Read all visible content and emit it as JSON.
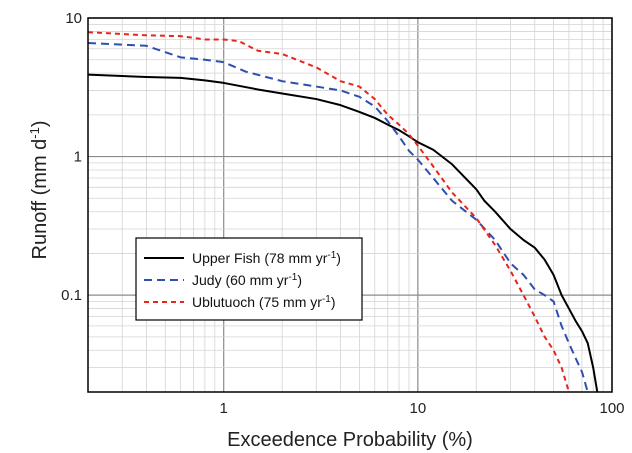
{
  "chart_data": {
    "type": "line",
    "xlabel": "Exceedence Probability (%)",
    "ylabel": {
      "main": "Runoff (mm d",
      "sup": "-1",
      "end": ")"
    },
    "xscale": "log",
    "yscale": "log",
    "xlim": [
      0.2,
      100
    ],
    "ylim": [
      0.02,
      10
    ],
    "xticks": [
      {
        "value": 1,
        "label": "1"
      },
      {
        "value": 10,
        "label": "10"
      },
      {
        "value": 100,
        "label": "100"
      }
    ],
    "yticks": [
      {
        "value": 0.1,
        "label": "0.1"
      },
      {
        "value": 1,
        "label": "1"
      },
      {
        "value": 10,
        "label": "10"
      }
    ],
    "grid": true,
    "legend_position": "lower-left",
    "series": [
      {
        "key": "upper-fish",
        "name": {
          "main": "Upper Fish (78 mm yr",
          "sup": "-1",
          "end": ")"
        },
        "color": "#000000",
        "dash": "solid",
        "points": [
          [
            0.2,
            3.9
          ],
          [
            0.4,
            3.75
          ],
          [
            0.6,
            3.7
          ],
          [
            0.8,
            3.55
          ],
          [
            1.0,
            3.4
          ],
          [
            1.5,
            3.05
          ],
          [
            2.0,
            2.85
          ],
          [
            3.0,
            2.6
          ],
          [
            4.0,
            2.35
          ],
          [
            5.0,
            2.1
          ],
          [
            6.0,
            1.9
          ],
          [
            7.0,
            1.7
          ],
          [
            8.0,
            1.55
          ],
          [
            9.0,
            1.4
          ],
          [
            10.0,
            1.27
          ],
          [
            12.0,
            1.12
          ],
          [
            15.0,
            0.88
          ],
          [
            20.0,
            0.58
          ],
          [
            22.0,
            0.48
          ],
          [
            25.0,
            0.4
          ],
          [
            30.0,
            0.3
          ],
          [
            35.0,
            0.25
          ],
          [
            40.0,
            0.22
          ],
          [
            45.0,
            0.18
          ],
          [
            50.0,
            0.14
          ],
          [
            55.0,
            0.1
          ],
          [
            60.0,
            0.08
          ],
          [
            65.0,
            0.065
          ],
          [
            70.0,
            0.055
          ],
          [
            75.0,
            0.045
          ],
          [
            80.0,
            0.03
          ],
          [
            84.0,
            0.02
          ]
        ]
      },
      {
        "key": "judy",
        "name": {
          "main": "Judy (60 mm yr",
          "sup": "-1",
          "end": ")"
        },
        "color": "#2f4fb0",
        "dash": "dashed",
        "points": [
          [
            0.2,
            6.6
          ],
          [
            0.4,
            6.3
          ],
          [
            0.6,
            5.2
          ],
          [
            0.8,
            5.0
          ],
          [
            1.0,
            4.8
          ],
          [
            1.3,
            4.1
          ],
          [
            2.0,
            3.5
          ],
          [
            3.0,
            3.2
          ],
          [
            4.0,
            3.0
          ],
          [
            5.0,
            2.7
          ],
          [
            6.0,
            2.3
          ],
          [
            7.0,
            1.8
          ],
          [
            8.0,
            1.4
          ],
          [
            9.0,
            1.1
          ],
          [
            10.0,
            0.95
          ],
          [
            12.0,
            0.7
          ],
          [
            15.0,
            0.48
          ],
          [
            20.0,
            0.35
          ],
          [
            25.0,
            0.25
          ],
          [
            30.0,
            0.17
          ],
          [
            35.0,
            0.14
          ],
          [
            40.0,
            0.11
          ],
          [
            45.0,
            0.1
          ],
          [
            50.0,
            0.09
          ],
          [
            55.0,
            0.06
          ],
          [
            60.0,
            0.045
          ],
          [
            65.0,
            0.035
          ],
          [
            70.0,
            0.028
          ],
          [
            75.0,
            0.02
          ]
        ]
      },
      {
        "key": "ublutuoch",
        "name": {
          "main": "Ublutuoch (75 mm yr",
          "sup": "-1",
          "end": ")"
        },
        "color": "#e5261c",
        "dash": "dashed",
        "points": [
          [
            0.2,
            7.9
          ],
          [
            0.4,
            7.5
          ],
          [
            0.6,
            7.4
          ],
          [
            0.8,
            7.0
          ],
          [
            1.0,
            7.0
          ],
          [
            1.2,
            6.8
          ],
          [
            1.5,
            5.8
          ],
          [
            2.0,
            5.5
          ],
          [
            3.0,
            4.4
          ],
          [
            4.0,
            3.5
          ],
          [
            5.0,
            3.2
          ],
          [
            6.0,
            2.6
          ],
          [
            7.0,
            2.0
          ],
          [
            8.0,
            1.7
          ],
          [
            9.0,
            1.45
          ],
          [
            10.0,
            1.2
          ],
          [
            12.0,
            0.85
          ],
          [
            15.0,
            0.55
          ],
          [
            20.0,
            0.36
          ],
          [
            25.0,
            0.23
          ],
          [
            30.0,
            0.15
          ],
          [
            35.0,
            0.1
          ],
          [
            40.0,
            0.07
          ],
          [
            45.0,
            0.05
          ],
          [
            50.0,
            0.04
          ],
          [
            55.0,
            0.03
          ],
          [
            60.0,
            0.02
          ]
        ]
      }
    ]
  }
}
